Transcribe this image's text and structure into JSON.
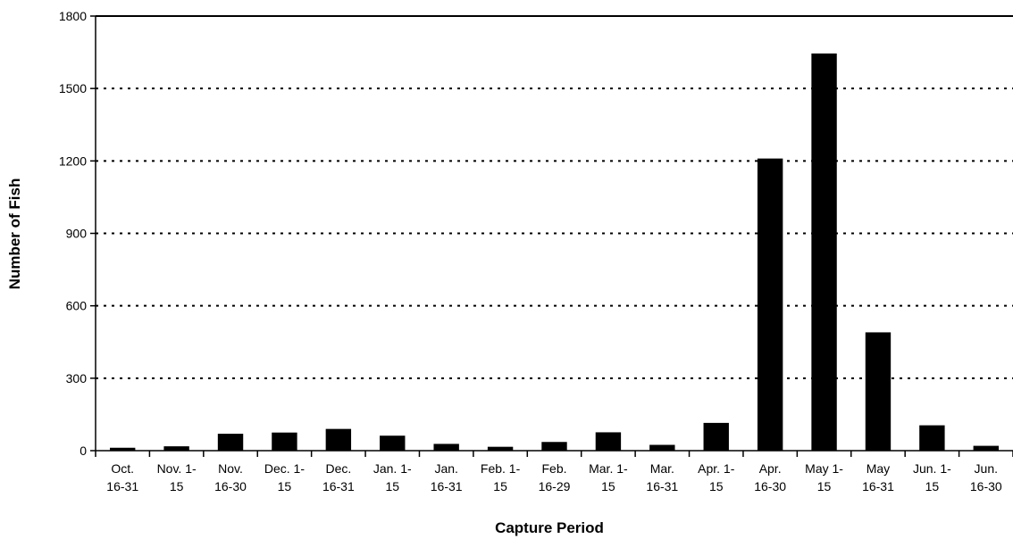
{
  "chart_data": {
    "type": "bar",
    "xlabel": "Capture Period",
    "ylabel": "Number of Fish",
    "ylim": [
      0,
      1800
    ],
    "yticks": [
      0,
      300,
      600,
      900,
      1200,
      1500,
      1800
    ],
    "grid": "horizontal-dotted",
    "bar_color": "#000000",
    "categories": [
      [
        "Oct.",
        "16-31"
      ],
      [
        "Nov. 1-",
        "15"
      ],
      [
        "Nov.",
        "16-30"
      ],
      [
        "Dec. 1-",
        "15"
      ],
      [
        "Dec.",
        "16-31"
      ],
      [
        "Jan. 1-",
        "15"
      ],
      [
        "Jan.",
        "16-31"
      ],
      [
        "Feb. 1-",
        "15"
      ],
      [
        "Feb.",
        "16-29"
      ],
      [
        "Mar. 1-",
        "15"
      ],
      [
        "Mar.",
        "16-31"
      ],
      [
        "Apr. 1-",
        "15"
      ],
      [
        "Apr.",
        "16-30"
      ],
      [
        "May 1-",
        "15"
      ],
      [
        "May",
        "16-31"
      ],
      [
        "Jun. 1-",
        "15"
      ],
      [
        "Jun.",
        "16-30"
      ]
    ],
    "values": [
      12,
      18,
      70,
      75,
      90,
      62,
      28,
      16,
      36,
      76,
      24,
      115,
      1210,
      1645,
      490,
      105,
      20
    ]
  }
}
